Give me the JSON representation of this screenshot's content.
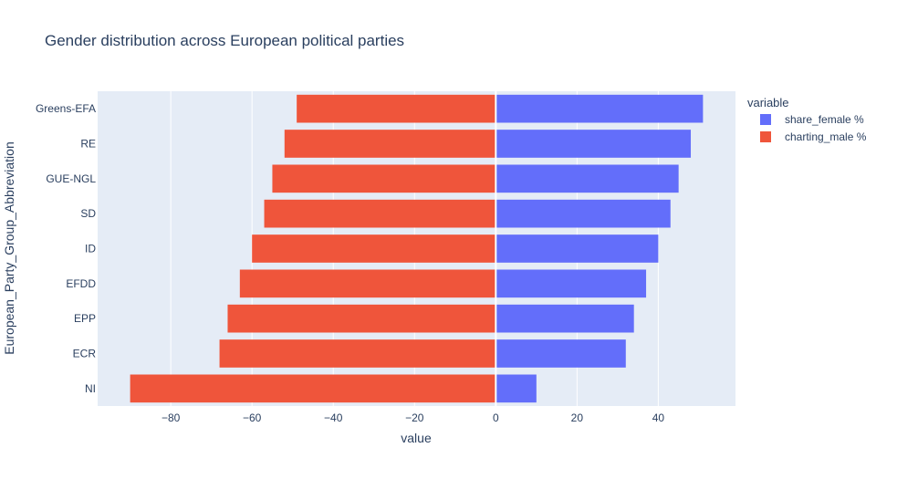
{
  "chart_data": {
    "type": "bar",
    "orientation": "horizontal",
    "barmode": "relative",
    "title": "Gender distribution across European political parties",
    "xlabel": "value",
    "ylabel": "European_Party_Group_Abbreviation",
    "categories": [
      "NI",
      "ECR",
      "EPP",
      "EFDD",
      "ID",
      "SD",
      "GUE-NGL",
      "RE",
      "Greens-EFA"
    ],
    "series": [
      {
        "name": "share_female %",
        "color": "#636efa",
        "values": [
          10,
          32,
          34,
          37,
          40,
          43,
          45,
          48,
          51
        ]
      },
      {
        "name": "charting_male %",
        "color": "#ef553b",
        "values": [
          -90,
          -68,
          -66,
          -63,
          -60,
          -57,
          -55,
          -52,
          -49
        ]
      }
    ],
    "xlim": [
      -98,
      59
    ],
    "xticks": [
      -80,
      -60,
      -40,
      -20,
      0,
      20,
      40
    ],
    "xtick_labels": [
      "−80",
      "−60",
      "−40",
      "−20",
      "0",
      "20",
      "40"
    ],
    "legend": {
      "title": "variable",
      "position": "right"
    },
    "grid": true,
    "colors": {
      "plot_bg": "#e5ecf6",
      "grid": "#ffffff",
      "text": "#2a3f5f"
    }
  }
}
